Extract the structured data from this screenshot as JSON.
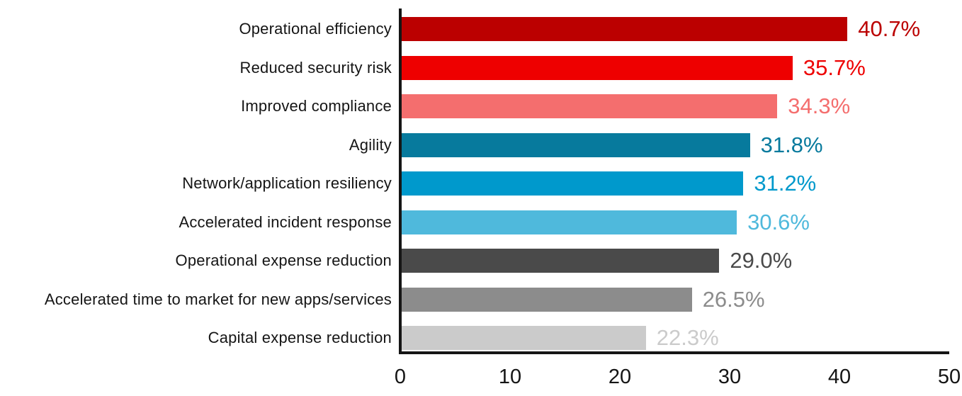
{
  "chart_data": {
    "type": "bar",
    "orientation": "horizontal",
    "title": "",
    "xlabel": "",
    "ylabel": "",
    "xlim": [
      0,
      50
    ],
    "x_ticks": [
      "0",
      "10",
      "20",
      "30",
      "40",
      "50"
    ],
    "x_tick_values": [
      0,
      10,
      20,
      30,
      40,
      50
    ],
    "grid": false,
    "legend": false,
    "categories": [
      "Operational efficiency",
      "Reduced security risk",
      "Improved compliance",
      "Agility",
      "Network/application resiliency",
      "Accelerated incident response",
      "Operational expense reduction",
      "Accelerated time to market for new apps/services",
      "Capital expense reduction"
    ],
    "values": [
      40.7,
      35.7,
      34.3,
      31.8,
      31.2,
      30.6,
      29.0,
      26.5,
      22.3
    ],
    "value_labels": [
      "40.7%",
      "35.7%",
      "34.3%",
      "31.8%",
      "31.2%",
      "30.6%",
      "29.0%",
      "26.5%",
      "22.3%"
    ],
    "bar_colors": [
      "#BB0000",
      "#EE0000",
      "#F46E6E",
      "#077A9D",
      "#0099CC",
      "#4FB9DC",
      "#4A4A4A",
      "#8C8C8C",
      "#CBCBCB"
    ],
    "value_label_colors": [
      "#BB0000",
      "#EE0000",
      "#F46E6E",
      "#077A9D",
      "#0099CC",
      "#4FB9DC",
      "#4A4A4A",
      "#8C8C8C",
      "#CBCBCB"
    ],
    "axis_color": "#151515",
    "category_label_color": "#151515"
  }
}
